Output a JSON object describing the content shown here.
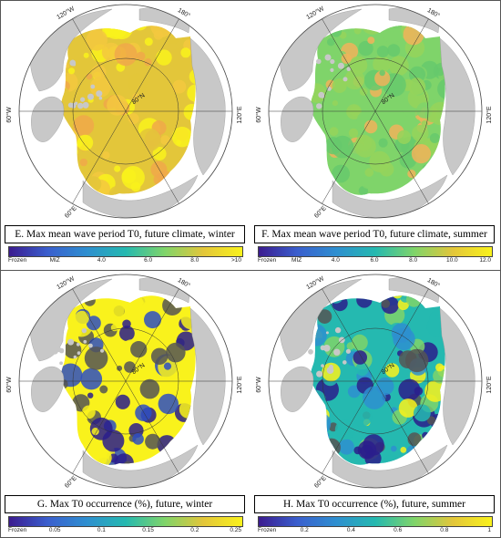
{
  "map_labels": {
    "lon_120w": "120°W",
    "lon_180": "180°",
    "lon_60w": "60°W",
    "lon_120e": "120°E",
    "lat_80n": "80°N",
    "lon_60e": "60°E"
  },
  "panels": [
    {
      "id": "E",
      "caption": "E. Max mean wave period T0, future climate, winter",
      "field": "yellow",
      "colorbar": {
        "type": "viridis-like",
        "ticks": [
          "Frozen",
          "MIZ",
          "4.0",
          "6.0",
          "8.0",
          ">10"
        ]
      }
    },
    {
      "id": "F",
      "caption": "F. Max mean wave period T0, future climate, summer",
      "field": "green",
      "colorbar": {
        "type": "viridis-like",
        "ticks": [
          "Frozen",
          "MIZ",
          "4.0",
          "6.0",
          "8.0",
          "10.0",
          "12.0"
        ]
      }
    },
    {
      "id": "G",
      "caption": "G. Max T0 occurrence (%), future, winter",
      "field": "occ-winter",
      "colorbar": {
        "type": "viridis-like",
        "ticks": [
          "Frozen",
          "0.05",
          "0.1",
          "0.15",
          "0.2",
          "0.25"
        ]
      }
    },
    {
      "id": "H",
      "caption": "H. Max T0 occurrence (%), future, summer",
      "field": "occ-summer",
      "colorbar": {
        "type": "viridis-like",
        "ticks": [
          "Frozen",
          "0.2",
          "0.4",
          "0.6",
          "0.8",
          "1"
        ]
      }
    }
  ],
  "colors": {
    "land": "#c8c8c8",
    "sea": "#ffffff",
    "frozen": "#2a1d8c",
    "viridis": [
      "#3b1b8f",
      "#3a5fce",
      "#2e8fd0",
      "#25b9b0",
      "#7fd46a",
      "#e3c63a",
      "#f9f21c"
    ]
  }
}
